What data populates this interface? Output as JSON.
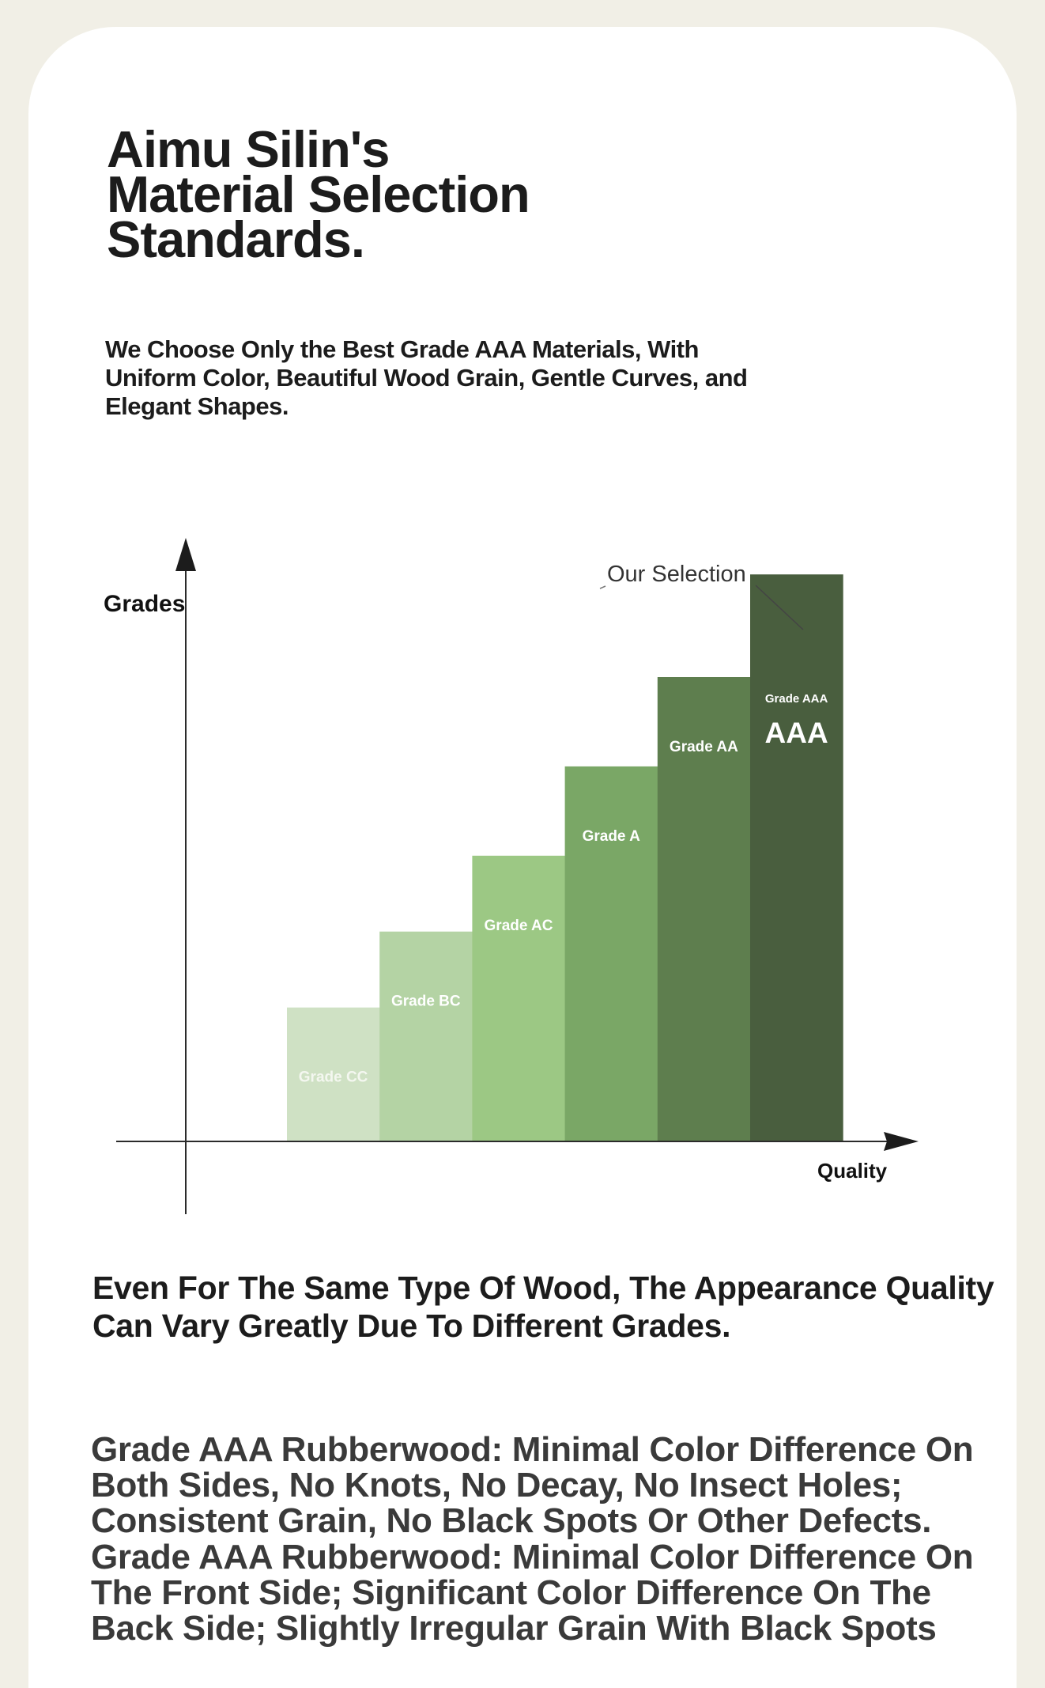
{
  "header": {
    "title": "Aimu Silin's Material Selection Standards.",
    "subtitle": "We Choose Only the Best Grade AAA Materials, With Uniform Color, Beautiful Wood Grain, Gentle Curves, and Elegant Shapes."
  },
  "chart_data": {
    "type": "bar",
    "ylabel": "Grades",
    "xlabel": "Quality",
    "annotation": "Our Selection",
    "badge": "AAA",
    "categories": [
      "Grade CC",
      "Grade BC",
      "Grade AC",
      "Grade A",
      "Grade AA",
      "Grade AAA"
    ],
    "values": [
      1.5,
      2.35,
      3.2,
      4.2,
      5.2,
      6.35
    ],
    "ylim": [
      0,
      8
    ],
    "colors": [
      "#cfe1c4",
      "#b4d3a4",
      "#9cc884",
      "#7aa766",
      "#5e7e4e",
      "#495e3e"
    ],
    "grid": false,
    "axis_ticks": false
  },
  "body": {
    "lead": "Even For The Same Type Of Wood, The Appearance Quality Can Vary Greatly Due To Different Grades.",
    "grade_descriptions": [
      "Grade AAA Rubberwood: Minimal Color Difference On Both Sides, No Knots, No Decay, No Insect Holes; Consistent Grain, No Black Spots Or Other Defects.",
      "Grade AAA Rubberwood: Minimal Color Difference On The Front Side; Significant Color Difference On The Back Side; Slightly Irregular Grain With Black Spots"
    ]
  }
}
